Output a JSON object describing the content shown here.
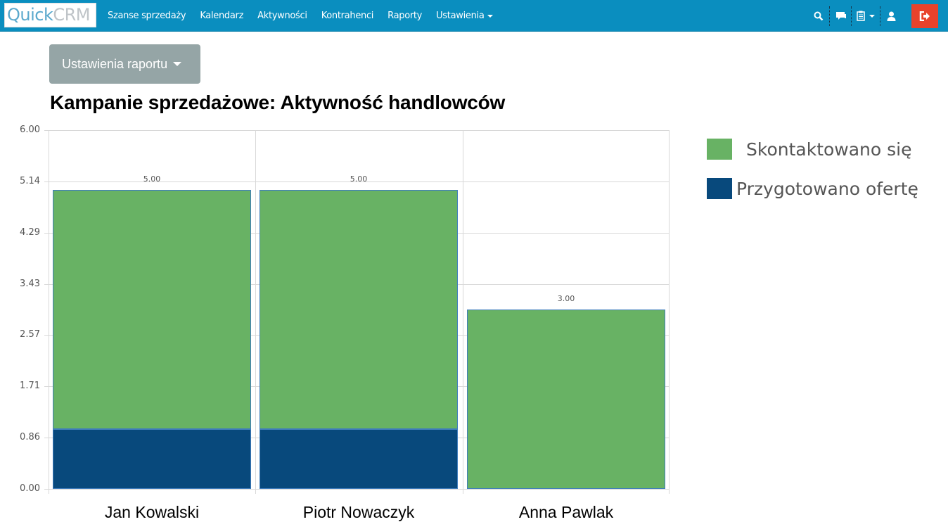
{
  "navbar": {
    "brand_left": "Quick",
    "brand_right": "CRM",
    "links": [
      "Szanse sprzedaży",
      "Kalendarz",
      "Aktywności",
      "Kontrahenci",
      "Raporty",
      "Ustawienia"
    ],
    "icons": [
      "search-icon",
      "chat-icon",
      "clipboard-icon",
      "user-icon",
      "logout-icon"
    ],
    "bg_color": "#0a8ebf",
    "logout_color": "#e8422b"
  },
  "report_settings": {
    "label": "Ustawienia raportu"
  },
  "page_title": "Kampanie sprzedażowe: Aktywność handlowców",
  "chart_data": {
    "type": "bar",
    "stacked": true,
    "title": "Kampanie sprzedażowe: Aktywność handlowców",
    "categories": [
      "Jan Kowalski",
      "Piotr Nowaczyk",
      "Anna Pawlak"
    ],
    "series": [
      {
        "name": "Przygotowano ofertę",
        "color": "#08497c",
        "values": [
          1,
          1,
          0
        ]
      },
      {
        "name": "Skontaktowano się",
        "color": "#68b264",
        "values": [
          4,
          4,
          3
        ]
      }
    ],
    "totals": [
      "5.00",
      "5.00",
      "3.00"
    ],
    "yticks": [
      "0.00",
      "0.86",
      "1.71",
      "2.57",
      "3.43",
      "4.29",
      "5.14",
      "6.00"
    ],
    "ylim": [
      0,
      6
    ],
    "xlabel": "",
    "ylabel": "",
    "grid": true,
    "legend_position": "right",
    "legend": [
      "Skontaktowano się",
      "Przygotowano ofertę"
    ]
  }
}
